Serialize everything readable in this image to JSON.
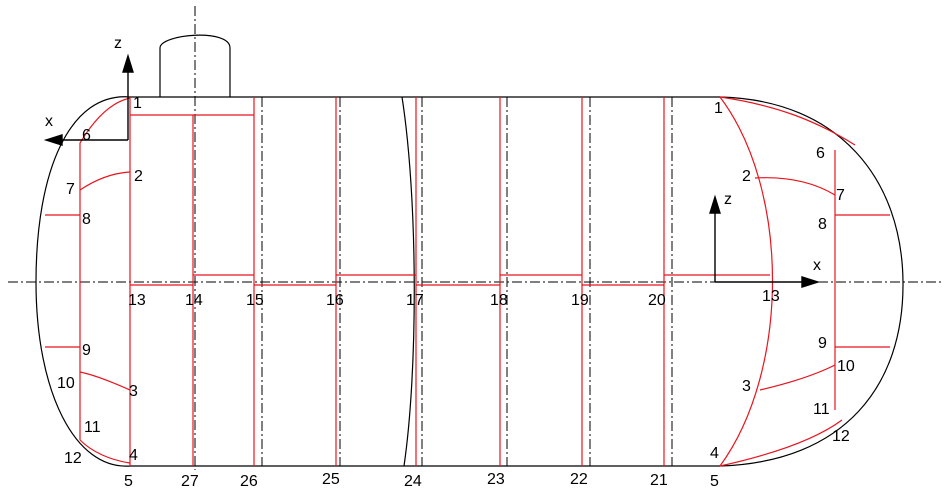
{
  "diagram": {
    "axes_left": {
      "x_label": "x",
      "z_label": "z"
    },
    "axes_right": {
      "x_label": "x",
      "z_label": "z"
    },
    "node_labels": [
      "1",
      "2",
      "3",
      "4",
      "5",
      "6",
      "7",
      "8",
      "9",
      "10",
      "11",
      "12",
      "13",
      "14",
      "15",
      "16",
      "17",
      "18",
      "19",
      "20",
      "21",
      "22",
      "23",
      "24",
      "25",
      "26",
      "27",
      "1",
      "2",
      "3",
      "4",
      "5",
      "6",
      "7",
      "8",
      "9",
      "10",
      "11",
      "12",
      "13"
    ],
    "colors": {
      "outline": "#000000",
      "mesh": "#e8141e",
      "centerline": "#000000"
    }
  }
}
